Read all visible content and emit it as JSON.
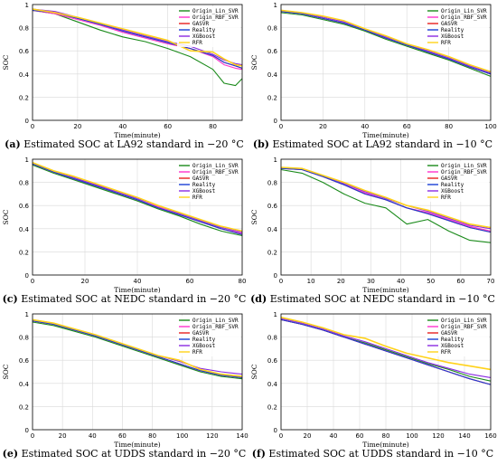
{
  "figure": {
    "panels": [
      {
        "id": "a",
        "caption_label": "(a)",
        "caption_text": "Estimated SOC at LA92 standard in −20 °C"
      },
      {
        "id": "b",
        "caption_label": "(b)",
        "caption_text": "Estimated SOC at LA92 standard in −10 °C"
      },
      {
        "id": "c",
        "caption_label": "(c)",
        "caption_text": "Estimated SOC at NEDC standard in −20 °C"
      },
      {
        "id": "d",
        "caption_label": "(d)",
        "caption_text": "Estimated SOC at NEDC standard in −10 °C"
      },
      {
        "id": "e",
        "caption_label": "(e)",
        "caption_text": "Estimated SOC at UDDS standard in −20 °C"
      },
      {
        "id": "f",
        "caption_label": "(f)",
        "caption_text": "Estimated SOC at UDDS standard in −10 °C"
      }
    ]
  },
  "chart_data": [
    {
      "type": "line",
      "panel": "a",
      "title": "",
      "xlabel": "Time(minute)",
      "ylabel": "SOC",
      "xlim": [
        0,
        93
      ],
      "ylim": [
        0,
        1.0
      ],
      "xticks": [
        0,
        20,
        40,
        60,
        80
      ],
      "yticks": [
        0.0,
        0.2,
        0.4,
        0.6,
        0.8,
        1.0
      ],
      "grid": true,
      "legend_position": "top-right",
      "x": [
        0,
        10,
        20,
        30,
        40,
        50,
        60,
        70,
        80,
        85,
        90,
        93
      ],
      "series": [
        {
          "name": "Origin_Lin_SVR",
          "color": "#1a8a1a",
          "values": [
            0.95,
            0.92,
            0.85,
            0.78,
            0.72,
            0.68,
            0.62,
            0.55,
            0.44,
            0.32,
            0.3,
            0.36
          ]
        },
        {
          "name": "Origin_RBF_SVR",
          "color": "#ff33cc",
          "values": [
            0.95,
            0.92,
            0.87,
            0.82,
            0.76,
            0.71,
            0.66,
            0.62,
            0.55,
            0.48,
            0.45,
            0.44
          ]
        },
        {
          "name": "GASVR",
          "color": "#e82020",
          "values": [
            0.95,
            0.93,
            0.88,
            0.83,
            0.77,
            0.72,
            0.67,
            0.62,
            0.56,
            0.5,
            0.47,
            0.45
          ]
        },
        {
          "name": "Reality",
          "color": "#1a3fd6",
          "values": [
            0.95,
            0.93,
            0.88,
            0.83,
            0.77,
            0.72,
            0.67,
            0.62,
            0.56,
            0.5,
            0.47,
            0.45
          ]
        },
        {
          "name": "XGBoost",
          "color": "#8a2be2",
          "values": [
            0.96,
            0.94,
            0.89,
            0.84,
            0.78,
            0.73,
            0.68,
            0.64,
            0.57,
            0.52,
            0.49,
            0.48
          ]
        },
        {
          "name": "RFR",
          "color": "#ffd21a",
          "values": [
            0.96,
            0.93,
            0.89,
            0.84,
            0.79,
            0.74,
            0.69,
            0.6,
            0.59,
            0.53,
            0.48,
            0.47
          ]
        }
      ]
    },
    {
      "type": "line",
      "panel": "b",
      "title": "",
      "xlabel": "Time(minute)",
      "ylabel": "SOC",
      "xlim": [
        0,
        100
      ],
      "ylim": [
        0,
        1.0
      ],
      "xticks": [
        0,
        20,
        40,
        60,
        80,
        100
      ],
      "yticks": [
        0.0,
        0.2,
        0.4,
        0.6,
        0.8,
        1.0
      ],
      "grid": true,
      "legend_position": "top-right",
      "x": [
        0,
        10,
        20,
        30,
        40,
        50,
        60,
        70,
        80,
        90,
        100
      ],
      "series": [
        {
          "name": "Origin_Lin_SVR",
          "color": "#1a8a1a",
          "values": [
            0.93,
            0.91,
            0.87,
            0.83,
            0.77,
            0.7,
            0.64,
            0.58,
            0.52,
            0.45,
            0.38
          ]
        },
        {
          "name": "Origin_RBF_SVR",
          "color": "#ff33cc",
          "values": [
            0.94,
            0.92,
            0.88,
            0.84,
            0.78,
            0.71,
            0.65,
            0.59,
            0.53,
            0.46,
            0.4
          ]
        },
        {
          "name": "GASVR",
          "color": "#e82020",
          "values": [
            0.94,
            0.92,
            0.88,
            0.84,
            0.78,
            0.71,
            0.65,
            0.59,
            0.53,
            0.46,
            0.4
          ]
        },
        {
          "name": "Reality",
          "color": "#1a3fd6",
          "values": [
            0.94,
            0.92,
            0.88,
            0.84,
            0.78,
            0.71,
            0.65,
            0.59,
            0.53,
            0.46,
            0.4
          ]
        },
        {
          "name": "XGBoost",
          "color": "#8a2be2",
          "values": [
            0.95,
            0.93,
            0.89,
            0.85,
            0.79,
            0.72,
            0.66,
            0.6,
            0.54,
            0.47,
            0.41
          ]
        },
        {
          "name": "RFR",
          "color": "#ffd21a",
          "values": [
            0.95,
            0.93,
            0.9,
            0.86,
            0.79,
            0.73,
            0.66,
            0.61,
            0.55,
            0.48,
            0.42
          ]
        }
      ]
    },
    {
      "type": "line",
      "panel": "c",
      "title": "",
      "xlabel": "Time(minute)",
      "ylabel": "SOC",
      "xlim": [
        0,
        80
      ],
      "ylim": [
        0,
        1.0
      ],
      "xticks": [
        0,
        20,
        40,
        60,
        80
      ],
      "yticks": [
        0.0,
        0.2,
        0.4,
        0.6,
        0.8,
        1.0
      ],
      "grid": true,
      "legend_position": "top-right",
      "x": [
        0,
        8,
        16,
        24,
        32,
        40,
        48,
        56,
        64,
        72,
        80
      ],
      "series": [
        {
          "name": "Origin_Lin_SVR",
          "color": "#1a8a1a",
          "values": [
            0.95,
            0.88,
            0.82,
            0.76,
            0.7,
            0.64,
            0.57,
            0.51,
            0.44,
            0.38,
            0.34
          ]
        },
        {
          "name": "Origin_RBF_SVR",
          "color": "#ff33cc",
          "values": [
            0.96,
            0.89,
            0.83,
            0.78,
            0.71,
            0.65,
            0.59,
            0.52,
            0.46,
            0.4,
            0.36
          ]
        },
        {
          "name": "GASVR",
          "color": "#e82020",
          "values": [
            0.96,
            0.89,
            0.83,
            0.77,
            0.71,
            0.65,
            0.58,
            0.52,
            0.46,
            0.4,
            0.35
          ]
        },
        {
          "name": "Reality",
          "color": "#1a3fd6",
          "values": [
            0.96,
            0.89,
            0.83,
            0.77,
            0.71,
            0.65,
            0.58,
            0.52,
            0.46,
            0.4,
            0.35
          ]
        },
        {
          "name": "XGBoost",
          "color": "#8a2be2",
          "values": [
            0.97,
            0.9,
            0.84,
            0.78,
            0.72,
            0.66,
            0.6,
            0.53,
            0.47,
            0.41,
            0.37
          ]
        },
        {
          "name": "RFR",
          "color": "#ffd21a",
          "values": [
            0.97,
            0.9,
            0.85,
            0.79,
            0.73,
            0.67,
            0.6,
            0.54,
            0.48,
            0.42,
            0.38
          ]
        }
      ]
    },
    {
      "type": "line",
      "panel": "d",
      "title": "",
      "xlabel": "Time(minute)",
      "ylabel": "SOC",
      "xlim": [
        0,
        70
      ],
      "ylim": [
        0,
        1.0
      ],
      "xticks": [
        0,
        10,
        20,
        30,
        40,
        50,
        60,
        70
      ],
      "yticks": [
        0.0,
        0.2,
        0.4,
        0.6,
        0.8,
        1.0
      ],
      "grid": true,
      "legend_position": "top-right",
      "x": [
        0,
        7,
        14,
        21,
        28,
        35,
        42,
        49,
        56,
        63,
        70
      ],
      "series": [
        {
          "name": "Origin_Lin_SVR",
          "color": "#1a8a1a",
          "values": [
            0.91,
            0.88,
            0.8,
            0.7,
            0.62,
            0.58,
            0.44,
            0.48,
            0.38,
            0.3,
            0.28
          ]
        },
        {
          "name": "Origin_RBF_SVR",
          "color": "#ff33cc",
          "values": [
            0.92,
            0.91,
            0.85,
            0.78,
            0.71,
            0.65,
            0.58,
            0.54,
            0.48,
            0.42,
            0.38
          ]
        },
        {
          "name": "GASVR",
          "color": "#e82020",
          "values": [
            0.92,
            0.91,
            0.85,
            0.78,
            0.7,
            0.65,
            0.58,
            0.53,
            0.47,
            0.41,
            0.37
          ]
        },
        {
          "name": "Reality",
          "color": "#1a3fd6",
          "values": [
            0.92,
            0.91,
            0.85,
            0.78,
            0.7,
            0.65,
            0.58,
            0.53,
            0.47,
            0.41,
            0.37
          ]
        },
        {
          "name": "XGBoost",
          "color": "#8a2be2",
          "values": [
            0.93,
            0.92,
            0.86,
            0.79,
            0.72,
            0.66,
            0.6,
            0.55,
            0.49,
            0.43,
            0.4
          ]
        },
        {
          "name": "RFR",
          "color": "#ffd21a",
          "values": [
            0.93,
            0.92,
            0.86,
            0.8,
            0.73,
            0.67,
            0.6,
            0.56,
            0.5,
            0.44,
            0.41
          ]
        }
      ]
    },
    {
      "type": "line",
      "panel": "e",
      "title": "",
      "xlabel": "Time(minute)",
      "ylabel": "SOC",
      "xlim": [
        0,
        140
      ],
      "ylim": [
        0,
        1.0
      ],
      "xticks": [
        0,
        20,
        40,
        60,
        80,
        100,
        120,
        140
      ],
      "yticks": [
        0.0,
        0.2,
        0.4,
        0.6,
        0.8,
        1.0
      ],
      "grid": true,
      "legend_position": "top-right",
      "x": [
        0,
        14,
        28,
        42,
        56,
        70,
        84,
        98,
        112,
        126,
        140
      ],
      "series": [
        {
          "name": "Origin_Lin_SVR",
          "color": "#1a8a1a",
          "values": [
            0.93,
            0.9,
            0.85,
            0.8,
            0.74,
            0.68,
            0.62,
            0.56,
            0.5,
            0.46,
            0.44
          ]
        },
        {
          "name": "Origin_RBF_SVR",
          "color": "#ff33cc",
          "values": [
            0.94,
            0.91,
            0.86,
            0.81,
            0.75,
            0.69,
            0.63,
            0.57,
            0.51,
            0.47,
            0.45
          ]
        },
        {
          "name": "GASVR",
          "color": "#e82020",
          "values": [
            0.94,
            0.91,
            0.86,
            0.81,
            0.75,
            0.69,
            0.63,
            0.57,
            0.51,
            0.47,
            0.45
          ]
        },
        {
          "name": "Reality",
          "color": "#1a3fd6",
          "values": [
            0.94,
            0.91,
            0.86,
            0.81,
            0.75,
            0.69,
            0.63,
            0.57,
            0.51,
            0.47,
            0.45
          ]
        },
        {
          "name": "XGBoost",
          "color": "#8a2be2",
          "values": [
            0.95,
            0.92,
            0.87,
            0.82,
            0.76,
            0.7,
            0.64,
            0.59,
            0.53,
            0.5,
            0.48
          ]
        },
        {
          "name": "RFR",
          "color": "#ffd21a",
          "values": [
            0.95,
            0.92,
            0.87,
            0.82,
            0.76,
            0.7,
            0.64,
            0.6,
            0.52,
            0.48,
            0.46
          ]
        }
      ]
    },
    {
      "type": "line",
      "panel": "f",
      "title": "",
      "xlabel": "Time(minute)",
      "ylabel": "SOC",
      "xlim": [
        0,
        160
      ],
      "ylim": [
        0,
        1.0
      ],
      "xticks": [
        0,
        20,
        40,
        60,
        80,
        100,
        120,
        140,
        160
      ],
      "yticks": [
        0.0,
        0.2,
        0.4,
        0.6,
        0.8,
        1.0
      ],
      "grid": true,
      "legend_position": "top-right",
      "x": [
        0,
        16,
        32,
        48,
        64,
        80,
        96,
        112,
        128,
        144,
        160
      ],
      "series": [
        {
          "name": "Origin_Lin_SVR",
          "color": "#1a8a1a",
          "values": [
            0.95,
            0.91,
            0.86,
            0.8,
            0.75,
            0.69,
            0.63,
            0.57,
            0.52,
            0.46,
            0.42
          ]
        },
        {
          "name": "Origin_RBF_SVR",
          "color": "#ff33cc",
          "values": [
            0.95,
            0.91,
            0.86,
            0.8,
            0.74,
            0.68,
            0.62,
            0.56,
            0.5,
            0.44,
            0.39
          ]
        },
        {
          "name": "GASVR",
          "color": "#e82020",
          "values": [
            0.95,
            0.91,
            0.86,
            0.8,
            0.74,
            0.68,
            0.62,
            0.56,
            0.5,
            0.44,
            0.39
          ]
        },
        {
          "name": "Reality",
          "color": "#1a3fd6",
          "values": [
            0.95,
            0.91,
            0.86,
            0.8,
            0.74,
            0.68,
            0.62,
            0.56,
            0.5,
            0.44,
            0.39
          ]
        },
        {
          "name": "XGBoost",
          "color": "#8a2be2",
          "values": [
            0.96,
            0.92,
            0.87,
            0.81,
            0.76,
            0.7,
            0.64,
            0.58,
            0.53,
            0.48,
            0.45
          ]
        },
        {
          "name": "RFR",
          "color": "#ffd21a",
          "values": [
            0.97,
            0.93,
            0.88,
            0.82,
            0.79,
            0.72,
            0.66,
            0.62,
            0.58,
            0.55,
            0.52
          ]
        }
      ]
    }
  ]
}
